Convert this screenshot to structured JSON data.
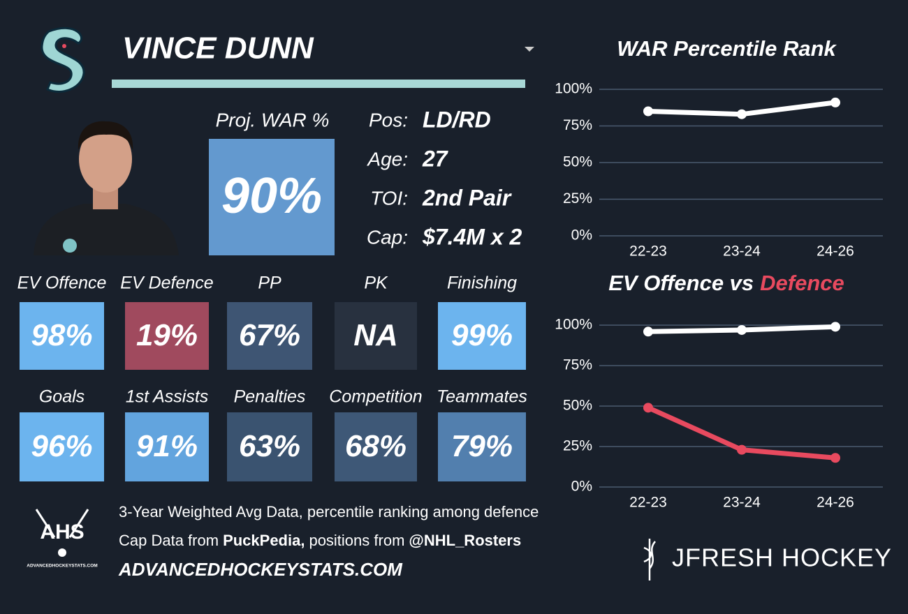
{
  "header": {
    "name": "VINCE DUNN"
  },
  "proj_war": {
    "label": "Proj. WAR %",
    "value": "90%",
    "color": "#6399cf"
  },
  "bio": [
    {
      "label": "Pos:",
      "value": "LD/RD"
    },
    {
      "label": "Age:",
      "value": 27
    },
    {
      "label": "TOI:",
      "value": "2nd Pair"
    },
    {
      "label": "Cap:",
      "value": "$7.4M x 2"
    }
  ],
  "tiles": [
    [
      {
        "label": "EV Offence",
        "value": "98%",
        "color": "#6cb4ee"
      },
      {
        "label": "EV Defence",
        "value": "19%",
        "color": "#a04a5e"
      },
      {
        "label": "PP",
        "value": "67%",
        "color": "#3e5573"
      },
      {
        "label": "PK",
        "value": "NA",
        "color": "#28313f"
      },
      {
        "label": "Finishing",
        "value": "99%",
        "color": "#6cb4ee"
      }
    ],
    [
      {
        "label": "Goals",
        "value": "96%",
        "color": "#6cb4ee"
      },
      {
        "label": "1st Assists",
        "value": "91%",
        "color": "#62a4de"
      },
      {
        "label": "Penalties",
        "value": "63%",
        "color": "#3a5370"
      },
      {
        "label": "Competition",
        "value": "68%",
        "color": "#3e5877"
      },
      {
        "label": "Teammates",
        "value": "79%",
        "color": "#527fae"
      }
    ]
  ],
  "footer": {
    "line1": "3-Year Weighted Avg Data, percentile ranking among defence",
    "line2": [
      "Cap Data from",
      "PuckPedia,",
      "positions from",
      "@NHL_Rosters"
    ],
    "site": "ADVANCEDHOCKEYSTATS.COM",
    "ahs": "AHS",
    "ahs_sub": "ADVANCEDHOCKEYSTATS.COM",
    "brand": "JFRESH HOCKEY"
  },
  "chart_data": [
    {
      "type": "line",
      "title": "WAR Percentile Rank",
      "categories": [
        "22-23",
        "23-24",
        "24-26"
      ],
      "series": [
        {
          "color": "#ffffff",
          "values": [
            85,
            83,
            91
          ]
        }
      ],
      "ylim": [
        0,
        100
      ],
      "yticks": [
        {
          "value": 0,
          "label": "0%"
        },
        {
          "value": 25,
          "label": "25%"
        },
        {
          "value": 50,
          "label": "50%"
        },
        {
          "value": 75,
          "label": "75%"
        },
        {
          "value": 100,
          "label": "100%"
        }
      ],
      "grid": true
    },
    {
      "type": "line",
      "title": "EV Offence vs",
      "title_highlight": "Defence",
      "title_highlight_color": "#e84a5f",
      "categories": [
        "22-23",
        "23-24",
        "24-26"
      ],
      "series": [
        {
          "color": "#ffffff",
          "values": [
            96,
            97,
            99
          ]
        },
        {
          "color": "#e84a5f",
          "values": [
            49,
            23,
            18
          ]
        }
      ],
      "ylim": [
        0,
        100
      ],
      "yticks": [
        {
          "value": 0,
          "label": "0%"
        },
        {
          "value": 25,
          "label": "25%"
        },
        {
          "value": 50,
          "label": "50%"
        },
        {
          "value": 75,
          "label": "75%"
        },
        {
          "value": 100,
          "label": "100%"
        }
      ],
      "grid": true
    }
  ]
}
